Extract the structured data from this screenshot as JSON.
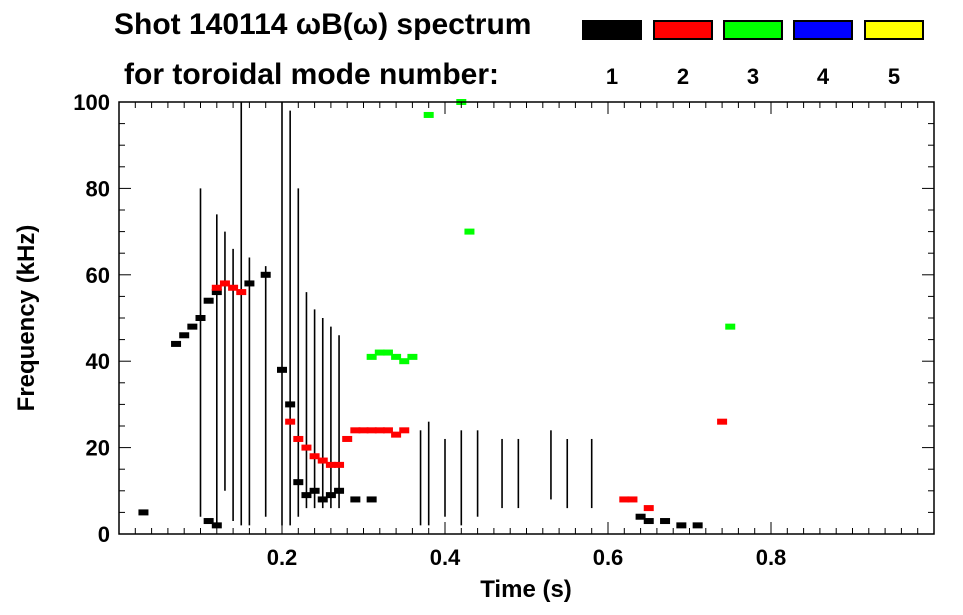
{
  "header": {
    "title_line1": "Shot 140114 ωB(ω) spectrum",
    "title_line2": "for toroidal mode number:"
  },
  "legend": [
    {
      "label": "1",
      "color": "#000000"
    },
    {
      "label": "2",
      "color": "#ff0000"
    },
    {
      "label": "3",
      "color": "#00ff00"
    },
    {
      "label": "4",
      "color": "#0000ff"
    },
    {
      "label": "5",
      "color": "#ffff00"
    }
  ],
  "chart_data": {
    "type": "scatter",
    "xlabel": "Time (s)",
    "ylabel": "Frequency (kHz)",
    "xlim": [
      0.0,
      1.0
    ],
    "ylim": [
      0,
      100
    ],
    "xticks": [
      0.2,
      0.4,
      0.6,
      0.8
    ],
    "xtick_labels": [
      "0.2",
      "0.4",
      "0.6",
      "0.8"
    ],
    "yticks": [
      0,
      20,
      40,
      60,
      80,
      100
    ],
    "ytick_labels": [
      "0",
      "20",
      "40",
      "60",
      "80",
      "100"
    ],
    "grid": false,
    "series": [
      {
        "name": "1",
        "color": "#000000",
        "points": [
          {
            "t": 0.07,
            "f": 44
          },
          {
            "t": 0.08,
            "f": 46
          },
          {
            "t": 0.09,
            "f": 48
          },
          {
            "t": 0.1,
            "f": 50
          },
          {
            "t": 0.11,
            "f": 54
          },
          {
            "t": 0.12,
            "f": 56
          },
          {
            "t": 0.16,
            "f": 58
          },
          {
            "t": 0.18,
            "f": 60
          },
          {
            "t": 0.2,
            "f": 38
          },
          {
            "t": 0.21,
            "f": 30
          },
          {
            "t": 0.22,
            "f": 12
          },
          {
            "t": 0.23,
            "f": 9
          },
          {
            "t": 0.24,
            "f": 10
          },
          {
            "t": 0.25,
            "f": 8
          },
          {
            "t": 0.26,
            "f": 9
          },
          {
            "t": 0.27,
            "f": 10
          },
          {
            "t": 0.29,
            "f": 8
          },
          {
            "t": 0.31,
            "f": 8
          },
          {
            "t": 0.03,
            "f": 5
          },
          {
            "t": 0.11,
            "f": 3
          },
          {
            "t": 0.12,
            "f": 2
          },
          {
            "t": 0.64,
            "f": 4
          },
          {
            "t": 0.65,
            "f": 3
          },
          {
            "t": 0.67,
            "f": 3
          },
          {
            "t": 0.69,
            "f": 2
          },
          {
            "t": 0.71,
            "f": 2
          }
        ],
        "vertical_bursts": [
          {
            "t": 0.1,
            "f0": 4,
            "f1": 80
          },
          {
            "t": 0.12,
            "f0": 2,
            "f1": 74
          },
          {
            "t": 0.13,
            "f0": 10,
            "f1": 70
          },
          {
            "t": 0.14,
            "f0": 3,
            "f1": 66
          },
          {
            "t": 0.15,
            "f0": 2,
            "f1": 100
          },
          {
            "t": 0.16,
            "f0": 2,
            "f1": 64
          },
          {
            "t": 0.18,
            "f0": 4,
            "f1": 62
          },
          {
            "t": 0.2,
            "f0": 2,
            "f1": 100
          },
          {
            "t": 0.21,
            "f0": 2,
            "f1": 98
          },
          {
            "t": 0.22,
            "f0": 4,
            "f1": 80
          },
          {
            "t": 0.23,
            "f0": 6,
            "f1": 56
          },
          {
            "t": 0.24,
            "f0": 6,
            "f1": 52
          },
          {
            "t": 0.25,
            "f0": 6,
            "f1": 50
          },
          {
            "t": 0.26,
            "f0": 6,
            "f1": 48
          },
          {
            "t": 0.27,
            "f0": 6,
            "f1": 46
          },
          {
            "t": 0.37,
            "f0": 2,
            "f1": 24
          },
          {
            "t": 0.38,
            "f0": 2,
            "f1": 26
          },
          {
            "t": 0.4,
            "f0": 4,
            "f1": 22
          },
          {
            "t": 0.42,
            "f0": 2,
            "f1": 24
          },
          {
            "t": 0.44,
            "f0": 4,
            "f1": 24
          },
          {
            "t": 0.47,
            "f0": 6,
            "f1": 22
          },
          {
            "t": 0.49,
            "f0": 6,
            "f1": 22
          },
          {
            "t": 0.53,
            "f0": 8,
            "f1": 24
          },
          {
            "t": 0.55,
            "f0": 6,
            "f1": 22
          },
          {
            "t": 0.58,
            "f0": 6,
            "f1": 22
          }
        ]
      },
      {
        "name": "2",
        "color": "#ff0000",
        "points": [
          {
            "t": 0.12,
            "f": 57
          },
          {
            "t": 0.13,
            "f": 58
          },
          {
            "t": 0.14,
            "f": 57
          },
          {
            "t": 0.15,
            "f": 56
          },
          {
            "t": 0.21,
            "f": 26
          },
          {
            "t": 0.22,
            "f": 22
          },
          {
            "t": 0.23,
            "f": 20
          },
          {
            "t": 0.24,
            "f": 18
          },
          {
            "t": 0.25,
            "f": 17
          },
          {
            "t": 0.26,
            "f": 16
          },
          {
            "t": 0.27,
            "f": 16
          },
          {
            "t": 0.28,
            "f": 22
          },
          {
            "t": 0.29,
            "f": 24
          },
          {
            "t": 0.3,
            "f": 24
          },
          {
            "t": 0.31,
            "f": 24
          },
          {
            "t": 0.32,
            "f": 24
          },
          {
            "t": 0.33,
            "f": 24
          },
          {
            "t": 0.34,
            "f": 23
          },
          {
            "t": 0.35,
            "f": 24
          },
          {
            "t": 0.62,
            "f": 8
          },
          {
            "t": 0.63,
            "f": 8
          },
          {
            "t": 0.65,
            "f": 6
          },
          {
            "t": 0.74,
            "f": 26
          }
        ]
      },
      {
        "name": "3",
        "color": "#00ff00",
        "points": [
          {
            "t": 0.31,
            "f": 41
          },
          {
            "t": 0.32,
            "f": 42
          },
          {
            "t": 0.33,
            "f": 42
          },
          {
            "t": 0.34,
            "f": 41
          },
          {
            "t": 0.35,
            "f": 40
          },
          {
            "t": 0.36,
            "f": 41
          },
          {
            "t": 0.38,
            "f": 97
          },
          {
            "t": 0.42,
            "f": 100
          },
          {
            "t": 0.43,
            "f": 70
          },
          {
            "t": 0.75,
            "f": 48
          }
        ]
      },
      {
        "name": "4",
        "color": "#0000ff",
        "points": []
      },
      {
        "name": "5",
        "color": "#ffff00",
        "points": []
      }
    ]
  }
}
